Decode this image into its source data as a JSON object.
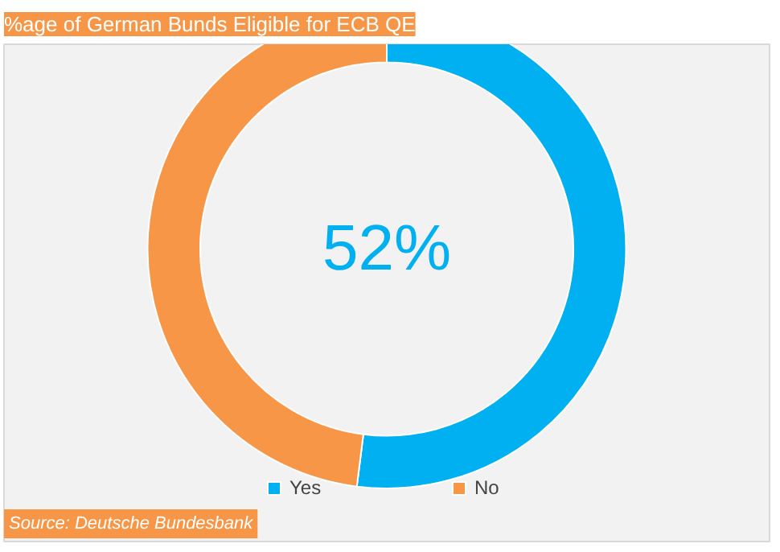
{
  "chart_data": {
    "type": "donut",
    "title": "%age of German Bunds Eligible for ECB QE",
    "categories": [
      "Yes",
      "No"
    ],
    "values": [
      52,
      48
    ],
    "colors": [
      "#00b0f0",
      "#f79646"
    ],
    "annotations": [
      "52%",
      "Source: Deutsche Bundesbank"
    ],
    "legend": "bottom"
  }
}
